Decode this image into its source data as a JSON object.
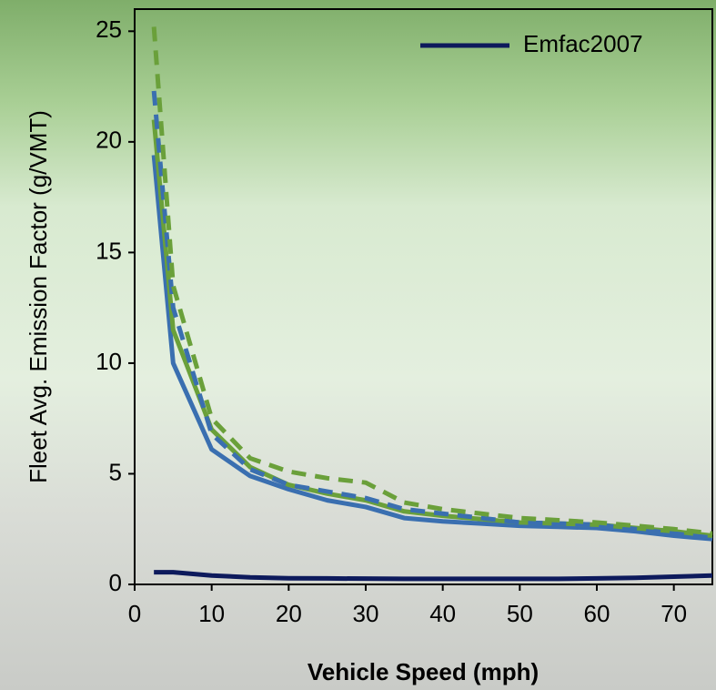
{
  "chart_data": {
    "type": "line",
    "xlabel": "Vehicle Speed (mph)",
    "ylabel": "Fleet Avg. Emission Factor (g/VMT)",
    "x": [
      2.5,
      5,
      10,
      15,
      20,
      25,
      30,
      35,
      40,
      45,
      50,
      55,
      60,
      65,
      70,
      75
    ],
    "series": [
      {
        "name": "Emfac2007",
        "color": "#0d1a5c",
        "style": "solid",
        "values": [
          0.55,
          0.55,
          0.4,
          0.32,
          0.28,
          0.27,
          0.26,
          0.25,
          0.25,
          0.25,
          0.25,
          0.25,
          0.27,
          0.3,
          0.35,
          0.4
        ]
      },
      {
        "color": "#3a6fb0",
        "style": "solid",
        "values": [
          19.4,
          10,
          6.1,
          4.9,
          4.3,
          3.8,
          3.5,
          3.0,
          2.85,
          2.75,
          2.65,
          2.6,
          2.55,
          2.4,
          2.2,
          2.05
        ]
      },
      {
        "color": "#6aa03a",
        "style": "solid",
        "values": [
          21,
          11.5,
          7,
          5.3,
          4.5,
          4.1,
          3.8,
          3.3,
          3.1,
          2.95,
          2.8,
          2.75,
          2.7,
          2.55,
          2.4,
          2.2
        ]
      },
      {
        "color": "#3a6fb0",
        "style": "dashed",
        "values": [
          22.3,
          12.5,
          6.8,
          5.2,
          4.5,
          4.2,
          3.9,
          3.4,
          3.2,
          3.0,
          2.8,
          2.75,
          2.7,
          2.5,
          2.3,
          2.1
        ]
      },
      {
        "color": "#6aa03a",
        "style": "dashed",
        "values": [
          25.2,
          13.5,
          7.5,
          5.7,
          5.1,
          4.8,
          4.6,
          3.7,
          3.4,
          3.2,
          3.0,
          2.9,
          2.8,
          2.65,
          2.5,
          2.3
        ]
      }
    ],
    "xlim": [
      0,
      75
    ],
    "xticks": [
      0,
      10,
      20,
      30,
      40,
      50,
      60,
      70
    ],
    "ylim": [
      0,
      26
    ],
    "yticks": [
      0,
      5,
      10,
      15,
      20,
      25
    ],
    "legend": "upper-right"
  }
}
